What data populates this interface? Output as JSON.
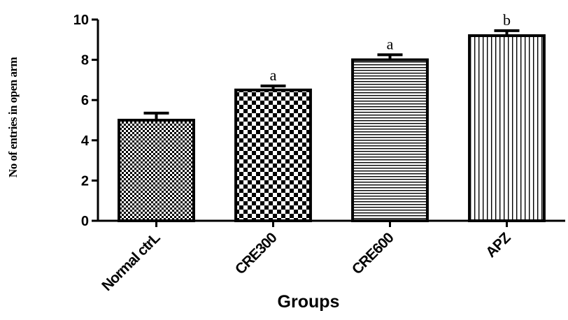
{
  "chart_data": {
    "type": "bar",
    "title": "",
    "xlabel": "Groups",
    "ylabel": "No of entries in open arm",
    "categories": [
      "Normal ctrL",
      "CRE300",
      "CRE600",
      "APZ"
    ],
    "values": [
      5.0,
      6.5,
      8.0,
      9.2
    ],
    "errors": [
      0.35,
      0.2,
      0.25,
      0.25
    ],
    "significance": [
      "",
      "a",
      "a",
      "b"
    ],
    "patterns": [
      "fine-checker",
      "coarse-checker",
      "horizontal-lines",
      "vertical-lines"
    ],
    "ylim": [
      0,
      10
    ],
    "yticks": [
      "0",
      "2",
      "4",
      "6",
      "8",
      "10"
    ],
    "grid": false,
    "legend": "none"
  }
}
